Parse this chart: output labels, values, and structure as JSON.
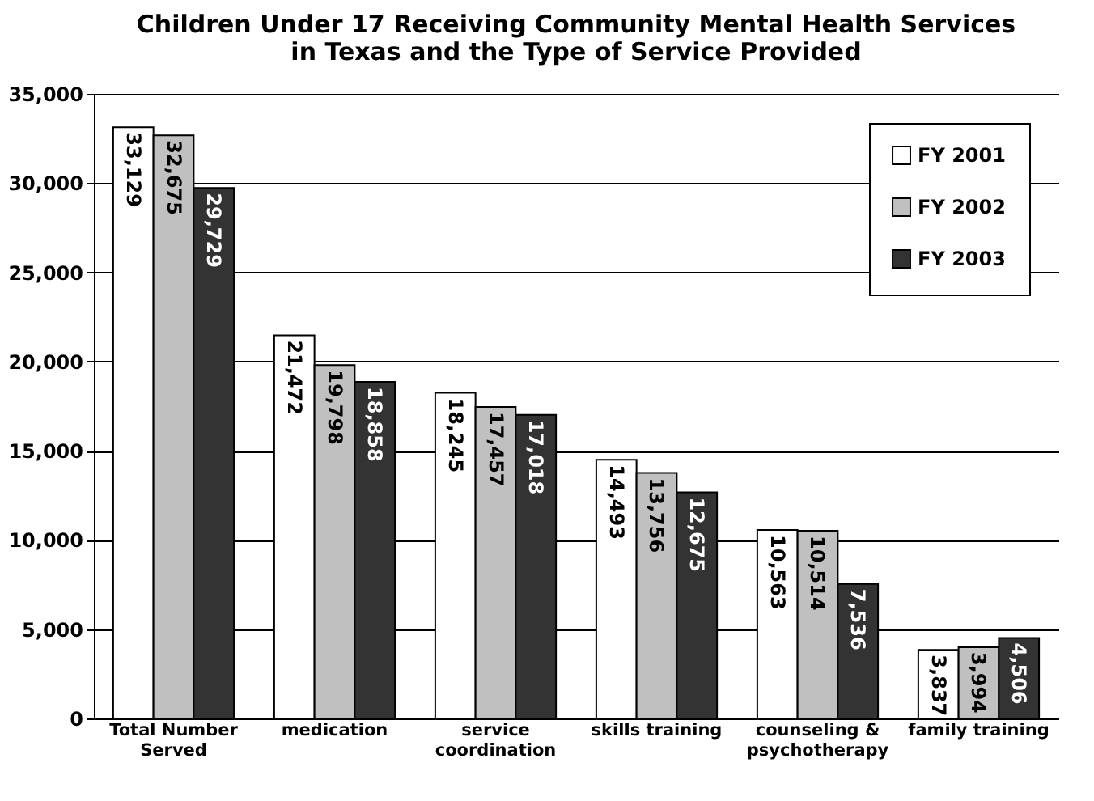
{
  "chart_data": {
    "type": "bar",
    "title": "Children Under 17 Receiving Community Mental Health Services in Texas and the Type of Service Provided",
    "categories": [
      "Total Number Served",
      "medication",
      "service coordination",
      "skills training",
      "counseling & psychotherapy",
      "family training"
    ],
    "series": [
      {
        "name": "FY 2001",
        "color": "#ffffff",
        "values": [
          33129,
          21472,
          18245,
          14493,
          10563,
          3837
        ],
        "value_labels": [
          "33,129",
          "21,472",
          "18,245",
          "14,493",
          "10,563",
          "3,837"
        ]
      },
      {
        "name": "FY 2002",
        "color": "#c0c0c0",
        "values": [
          32675,
          19798,
          17457,
          13756,
          10514,
          3994
        ],
        "value_labels": [
          "32,675",
          "19,798",
          "17,457",
          "13,756",
          "10,514",
          "3,994"
        ]
      },
      {
        "name": "FY 2003",
        "color": "#333333",
        "values": [
          29729,
          18858,
          17018,
          12675,
          7536,
          4506
        ],
        "value_labels": [
          "29,729",
          "18,858",
          "17,018",
          "12,675",
          "7,536",
          "4,506"
        ]
      }
    ],
    "ylim": [
      0,
      35000
    ],
    "yticks": [
      0,
      {
        "value": 5000,
        "label": "5,000"
      },
      {
        "value": 10000,
        "label": "10,000"
      },
      {
        "value": 15000,
        "label": "15,000"
      },
      {
        "value": 20000,
        "label": "20,000"
      },
      {
        "value": 25000,
        "label": "25,000"
      },
      {
        "value": 30000,
        "label": "30,000"
      },
      {
        "value": 35000,
        "label": "35,000"
      }
    ],
    "grid": "y",
    "legend": "top right"
  }
}
